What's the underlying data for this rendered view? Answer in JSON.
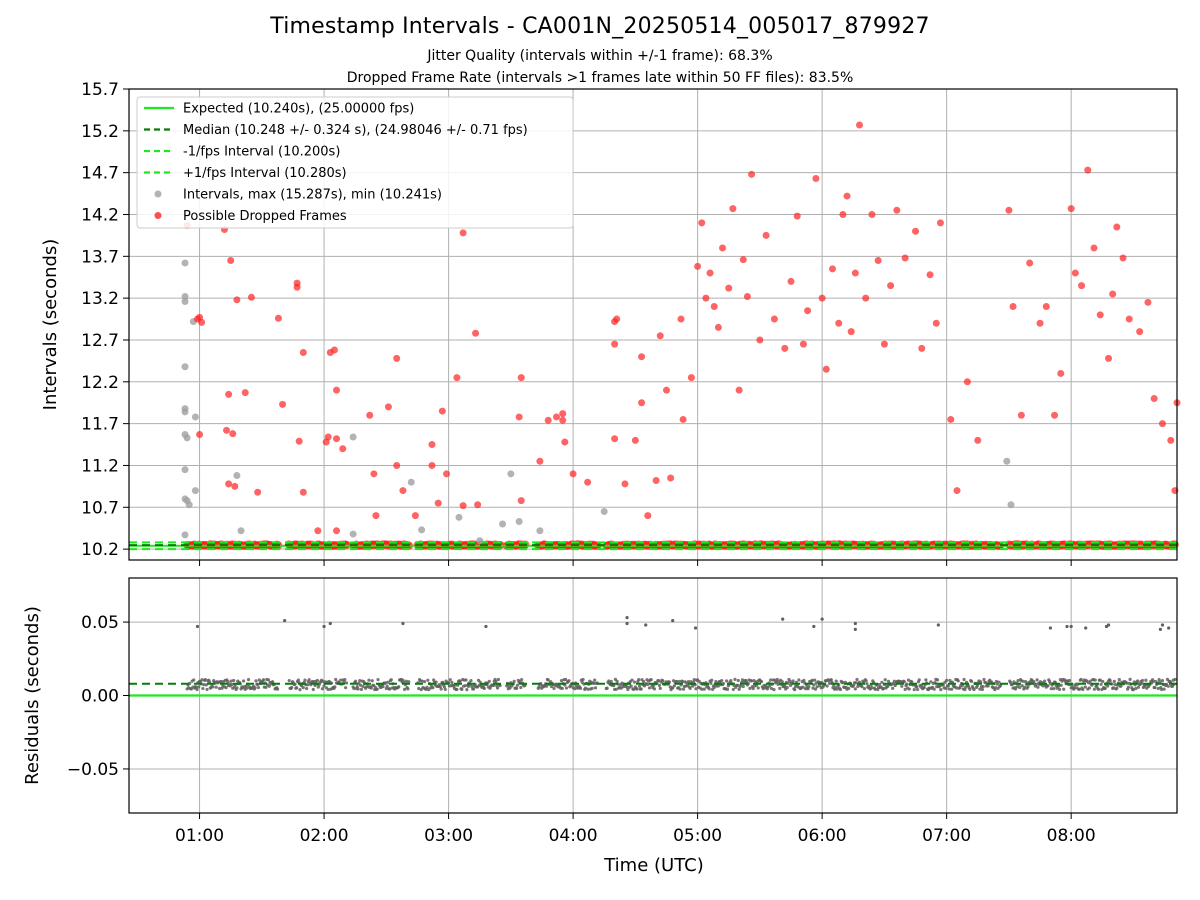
{
  "chart_data": [
    {
      "type": "scatter",
      "title": "Timestamp Intervals - CA001N_20250514_005017_879927",
      "subtitles": [
        "Jitter Quality (intervals within +/-1 frame): 68.3%",
        "Dropped Frame Rate (intervals >1 frames late within 50 FF files): 83.5%"
      ],
      "xlabel": "",
      "ylabel": "Intervals (seconds)",
      "xlim": [
        "00:26",
        "08:51"
      ],
      "ylim": [
        10.07,
        15.7
      ],
      "yticks": [
        "10.2",
        "10.7",
        "11.2",
        "11.7",
        "12.2",
        "12.7",
        "13.2",
        "13.7",
        "14.2",
        "14.7",
        "15.2",
        "15.7"
      ],
      "xticks": [
        "01:00",
        "02:00",
        "03:00",
        "04:00",
        "05:00",
        "06:00",
        "07:00",
        "08:00"
      ],
      "grid": true,
      "legend_position": "top-left",
      "reference_lines": [
        {
          "name": "Expected (10.240s), (25.00000 fps)",
          "value": 10.24,
          "style": "solid",
          "color": "#1ee81e"
        },
        {
          "name": "Median (10.248 +/- 0.324 s), (24.98046 +/- 0.71 fps)",
          "value": 10.248,
          "style": "dashed",
          "color": "#0a7a0a"
        },
        {
          "name": "-1/fps Interval (10.200s)",
          "value": 10.2,
          "style": "dashed",
          "color": "#1ee81e"
        },
        {
          "name": "+1/fps Interval (10.280s)",
          "value": 10.28,
          "style": "dashed",
          "color": "#1ee81e"
        }
      ],
      "series": [
        {
          "name": "Intervals, max (15.287s), min (10.241s)",
          "color": "#a0a0a0",
          "points": [
            [
              "00:53",
              13.62
            ],
            [
              "00:53",
              13.22
            ],
            [
              "00:53",
              13.16
            ],
            [
              "00:53",
              12.38
            ],
            [
              "00:53",
              11.88
            ],
            [
              "00:53",
              11.84
            ],
            [
              "00:53",
              11.57
            ],
            [
              "00:54",
              11.53
            ],
            [
              "00:53",
              11.15
            ],
            [
              "00:53",
              10.8
            ],
            [
              "00:54",
              10.78
            ],
            [
              "00:55",
              10.73
            ],
            [
              "00:53",
              10.37
            ],
            [
              "00:57",
              12.92
            ],
            [
              "00:58",
              11.78
            ],
            [
              "00:58",
              10.9
            ],
            [
              "01:18",
              11.08
            ],
            [
              "01:20",
              10.42
            ],
            [
              "02:14",
              11.54
            ],
            [
              "02:14",
              10.38
            ],
            [
              "02:42",
              11.0
            ],
            [
              "02:47",
              10.43
            ],
            [
              "03:05",
              10.58
            ],
            [
              "03:15",
              10.3
            ],
            [
              "03:26",
              10.5
            ],
            [
              "03:30",
              11.1
            ],
            [
              "03:34",
              10.53
            ],
            [
              "03:44",
              10.42
            ],
            [
              "04:15",
              10.65
            ],
            [
              "07:29",
              11.25
            ],
            [
              "07:31",
              10.73
            ]
          ]
        },
        {
          "name": "Possible Dropped Frames",
          "color": "#ff2222",
          "points": [
            [
              "00:54",
              14.07
            ],
            [
              "00:59",
              12.95
            ],
            [
              "01:00",
              12.97
            ],
            [
              "01:01",
              12.91
            ],
            [
              "01:00",
              11.57
            ],
            [
              "01:12",
              14.02
            ],
            [
              "01:13",
              11.62
            ],
            [
              "01:14",
              12.05
            ],
            [
              "01:14",
              10.98
            ],
            [
              "01:15",
              13.65
            ],
            [
              "01:16",
              11.58
            ],
            [
              "01:17",
              10.95
            ],
            [
              "01:18",
              13.18
            ],
            [
              "01:22",
              12.07
            ],
            [
              "01:25",
              13.21
            ],
            [
              "01:28",
              10.88
            ],
            [
              "01:38",
              12.96
            ],
            [
              "01:40",
              11.93
            ],
            [
              "01:47",
              13.33
            ],
            [
              "01:47",
              13.38
            ],
            [
              "01:48",
              11.49
            ],
            [
              "01:50",
              12.55
            ],
            [
              "01:50",
              10.88
            ],
            [
              "01:57",
              10.42
            ],
            [
              "02:01",
              11.48
            ],
            [
              "02:02",
              11.54
            ],
            [
              "02:03",
              12.55
            ],
            [
              "02:05",
              12.58
            ],
            [
              "02:06",
              12.1
            ],
            [
              "02:06",
              11.52
            ],
            [
              "02:06",
              10.42
            ],
            [
              "02:09",
              11.4
            ],
            [
              "02:22",
              11.8
            ],
            [
              "02:24",
              11.1
            ],
            [
              "02:25",
              10.6
            ],
            [
              "02:31",
              11.9
            ],
            [
              "02:35",
              12.48
            ],
            [
              "02:35",
              11.2
            ],
            [
              "02:38",
              10.9
            ],
            [
              "02:44",
              10.6
            ],
            [
              "02:52",
              11.45
            ],
            [
              "02:52",
              11.2
            ],
            [
              "02:57",
              11.85
            ],
            [
              "02:59",
              11.1
            ],
            [
              "02:55",
              10.75
            ],
            [
              "03:04",
              12.25
            ],
            [
              "03:07",
              13.98
            ],
            [
              "03:07",
              10.72
            ],
            [
              "03:13",
              12.78
            ],
            [
              "03:14",
              10.73
            ],
            [
              "03:35",
              12.25
            ],
            [
              "03:34",
              11.78
            ],
            [
              "03:35",
              10.78
            ],
            [
              "03:44",
              11.25
            ],
            [
              "03:48",
              11.74
            ],
            [
              "03:52",
              11.78
            ],
            [
              "03:55",
              11.74
            ],
            [
              "03:55",
              11.82
            ],
            [
              "03:56",
              11.48
            ],
            [
              "04:00",
              11.1
            ],
            [
              "04:07",
              11.0
            ],
            [
              "04:20",
              12.65
            ],
            [
              "04:20",
              12.92
            ],
            [
              "04:20",
              11.52
            ],
            [
              "04:21",
              12.95
            ],
            [
              "04:25",
              10.98
            ],
            [
              "04:30",
              11.5
            ],
            [
              "04:33",
              12.5
            ],
            [
              "04:33",
              11.95
            ],
            [
              "04:36",
              10.6
            ],
            [
              "04:40",
              11.02
            ],
            [
              "04:42",
              12.75
            ],
            [
              "04:45",
              12.1
            ],
            [
              "04:47",
              11.05
            ],
            [
              "04:52",
              12.95
            ],
            [
              "04:53",
              11.75
            ],
            [
              "04:57",
              12.25
            ],
            [
              "05:00",
              13.58
            ],
            [
              "05:02",
              14.1
            ],
            [
              "05:04",
              13.2
            ],
            [
              "05:06",
              13.5
            ],
            [
              "05:08",
              13.1
            ],
            [
              "05:10",
              12.85
            ],
            [
              "05:12",
              13.8
            ],
            [
              "05:15",
              13.32
            ],
            [
              "05:17",
              14.27
            ],
            [
              "05:20",
              12.1
            ],
            [
              "05:22",
              13.66
            ],
            [
              "05:24",
              13.22
            ],
            [
              "05:26",
              14.68
            ],
            [
              "05:30",
              12.7
            ],
            [
              "05:33",
              13.95
            ],
            [
              "05:37",
              12.95
            ],
            [
              "05:42",
              12.6
            ],
            [
              "05:45",
              13.4
            ],
            [
              "05:48",
              14.18
            ],
            [
              "05:51",
              12.65
            ],
            [
              "05:53",
              13.05
            ],
            [
              "05:57",
              14.63
            ],
            [
              "06:00",
              13.2
            ],
            [
              "06:02",
              12.35
            ],
            [
              "06:05",
              13.55
            ],
            [
              "06:08",
              12.9
            ],
            [
              "06:10",
              14.2
            ],
            [
              "06:12",
              14.42
            ],
            [
              "06:14",
              12.8
            ],
            [
              "06:16",
              13.5
            ],
            [
              "06:18",
              15.27
            ],
            [
              "06:21",
              13.2
            ],
            [
              "06:24",
              14.2
            ],
            [
              "06:27",
              13.65
            ],
            [
              "06:30",
              12.65
            ],
            [
              "06:33",
              13.35
            ],
            [
              "06:36",
              14.25
            ],
            [
              "06:40",
              13.68
            ],
            [
              "06:45",
              14.0
            ],
            [
              "06:48",
              12.6
            ],
            [
              "06:52",
              13.48
            ],
            [
              "06:55",
              12.9
            ],
            [
              "06:57",
              14.1
            ],
            [
              "07:02",
              11.75
            ],
            [
              "07:05",
              10.9
            ],
            [
              "07:10",
              12.2
            ],
            [
              "07:15",
              11.5
            ],
            [
              "07:30",
              14.25
            ],
            [
              "07:32",
              13.1
            ],
            [
              "07:36",
              11.8
            ],
            [
              "07:40",
              13.62
            ],
            [
              "07:45",
              12.9
            ],
            [
              "07:48",
              13.1
            ],
            [
              "07:52",
              11.8
            ],
            [
              "07:55",
              12.3
            ],
            [
              "08:00",
              14.27
            ],
            [
              "08:02",
              13.5
            ],
            [
              "08:05",
              13.35
            ],
            [
              "08:08",
              14.73
            ],
            [
              "08:11",
              13.8
            ],
            [
              "08:14",
              13.0
            ],
            [
              "08:18",
              12.48
            ],
            [
              "08:20",
              13.25
            ],
            [
              "08:22",
              14.05
            ],
            [
              "08:25",
              13.68
            ],
            [
              "08:28",
              12.95
            ],
            [
              "08:33",
              12.8
            ],
            [
              "08:37",
              13.15
            ],
            [
              "08:40",
              12.0
            ],
            [
              "08:44",
              11.7
            ],
            [
              "08:48",
              11.5
            ],
            [
              "08:50",
              10.9
            ],
            [
              "08:51",
              11.95
            ]
          ]
        }
      ]
    },
    {
      "type": "scatter",
      "xlabel": "Time (UTC)",
      "ylabel": "Residuals (seconds)",
      "xlim": [
        "00:26",
        "08:51"
      ],
      "ylim": [
        -0.08,
        0.08
      ],
      "yticks": [
        "0.05",
        "0.00",
        "−0.05"
      ],
      "xticks": [
        "01:00",
        "02:00",
        "03:00",
        "04:00",
        "05:00",
        "06:00",
        "07:00",
        "08:00"
      ],
      "grid": true,
      "reference_lines": [
        {
          "value": 0.0,
          "style": "solid",
          "color": "#1ee81e"
        },
        {
          "value": 0.008,
          "style": "dashed",
          "color": "#0a7a0a"
        }
      ],
      "series": [
        {
          "color": "#606060",
          "points": [
            [
              "00:59",
              0.047
            ],
            [
              "01:41",
              0.051
            ],
            [
              "02:00",
              0.047
            ],
            [
              "02:03",
              0.049
            ],
            [
              "02:38",
              0.049
            ],
            [
              "03:18",
              0.047
            ],
            [
              "04:26",
              0.053
            ],
            [
              "04:26",
              0.049
            ],
            [
              "04:35",
              0.048
            ],
            [
              "04:48",
              0.051
            ],
            [
              "04:59",
              0.046
            ],
            [
              "05:41",
              0.052
            ],
            [
              "05:56",
              0.047
            ],
            [
              "06:00",
              0.052
            ],
            [
              "06:16",
              0.049
            ],
            [
              "06:16",
              0.045
            ],
            [
              "06:56",
              0.048
            ],
            [
              "07:50",
              0.046
            ],
            [
              "07:58",
              0.047
            ],
            [
              "08:00",
              0.047
            ],
            [
              "08:07",
              0.046
            ],
            [
              "08:17",
              0.047
            ],
            [
              "08:18",
              0.048
            ],
            [
              "08:43",
              0.045
            ],
            [
              "08:44",
              0.048
            ],
            [
              "08:47",
              0.046
            ]
          ]
        }
      ]
    }
  ]
}
